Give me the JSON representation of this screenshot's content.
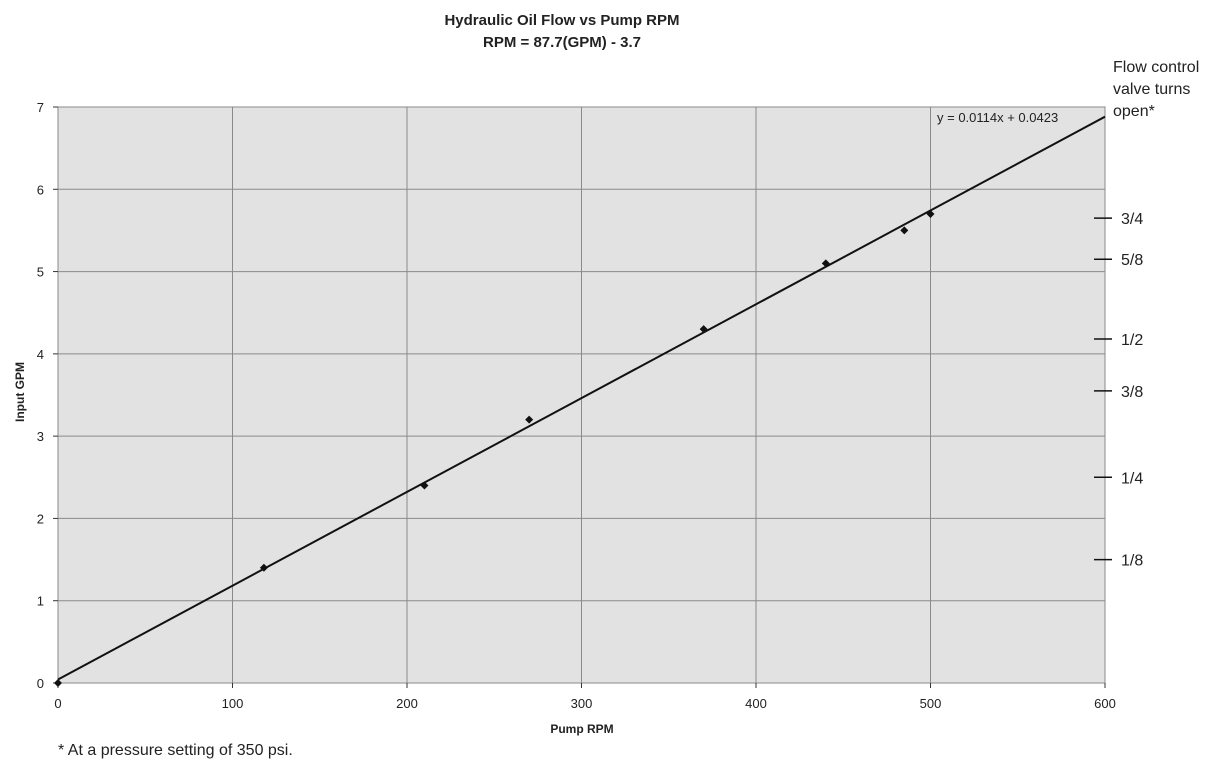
{
  "chart_data": {
    "type": "scatter",
    "title": "Hydraulic Oil Flow vs Pump RPM",
    "subtitle": "RPM = 87.7(GPM) - 3.7",
    "xlabel": "Pump RPM",
    "ylabel": "Input GPM",
    "xlim": [
      0,
      600
    ],
    "ylim": [
      0,
      7
    ],
    "x_ticks": [
      0,
      100,
      200,
      300,
      400,
      500,
      600
    ],
    "y_ticks": [
      0,
      1,
      2,
      3,
      4,
      5,
      6,
      7
    ],
    "grid": true,
    "series": [
      {
        "points": [
          {
            "x": 0,
            "y": 0
          },
          {
            "x": 118,
            "y": 1.4
          },
          {
            "x": 210,
            "y": 2.4
          },
          {
            "x": 270,
            "y": 3.2
          },
          {
            "x": 370,
            "y": 4.3
          },
          {
            "x": 440,
            "y": 5.1
          },
          {
            "x": 485,
            "y": 5.5
          },
          {
            "x": 500,
            "y": 5.7
          }
        ]
      }
    ],
    "trendline": {
      "equation": "y = 0.0114x + 0.0423",
      "slope": 0.0114,
      "intercept": 0.0423,
      "x_range": [
        0,
        600
      ]
    },
    "secondary_axis": {
      "header": [
        "Flow control",
        "valve turns",
        "open*"
      ],
      "ticks": [
        {
          "label": "3/4",
          "y": 5.65
        },
        {
          "label": "5/8",
          "y": 5.15
        },
        {
          "label": "1/2",
          "y": 4.18
        },
        {
          "label": "3/8",
          "y": 3.55
        },
        {
          "label": "1/4",
          "y": 2.5
        },
        {
          "label": "1/8",
          "y": 1.5
        }
      ]
    },
    "footnote": "* At a pressure setting of 350 psi.",
    "colors": {
      "plot_background": "#e2e2e2",
      "grid": "#8a8a8a",
      "line": "#111111",
      "marker": "#111111"
    }
  }
}
